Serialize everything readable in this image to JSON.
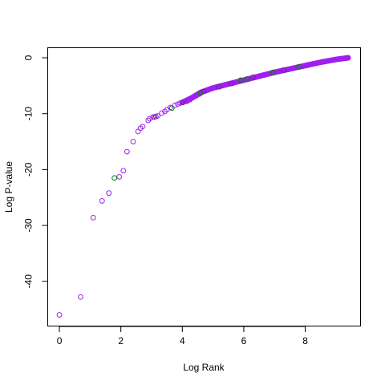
{
  "chart_data": {
    "type": "scatter",
    "title": "",
    "xlabel": "Log Rank",
    "ylabel": "Log P-value",
    "xlim": [
      -0.38,
      9.8
    ],
    "ylim": [
      -48.0,
      1.8
    ],
    "xticks": [
      0,
      2,
      4,
      6,
      8
    ],
    "yticks": [
      0,
      -10,
      -20,
      -30,
      -40
    ],
    "grid": false,
    "legend": "none",
    "marker": "open-circle",
    "colors": {
      "purple": "#a020f0",
      "green": "#008000",
      "dark_purple": "#6a2a8a"
    },
    "curve": {
      "description": "dense trail of overlapping circles from x=4.0 to x=9.4",
      "x": [
        4.0,
        4.3,
        4.6,
        5.0,
        5.5,
        6.0,
        6.5,
        7.0,
        7.5,
        8.0,
        8.5,
        9.0,
        9.4
      ],
      "y": [
        -8.0,
        -7.2,
        -6.2,
        -5.4,
        -4.7,
        -4.0,
        -3.3,
        -2.6,
        -2.0,
        -1.4,
        -0.8,
        -0.3,
        0.0
      ]
    },
    "series": [
      {
        "name": "",
        "color": "#a020f0",
        "points": [
          [
            0.0,
            -46.0
          ],
          [
            0.69,
            -42.8
          ],
          [
            1.1,
            -28.6
          ],
          [
            1.39,
            -25.6
          ],
          [
            1.61,
            -24.2
          ],
          [
            1.95,
            -21.3
          ],
          [
            2.08,
            -20.2
          ],
          [
            2.2,
            -16.8
          ],
          [
            2.4,
            -15.0
          ],
          [
            2.56,
            -13.2
          ],
          [
            2.64,
            -12.6
          ],
          [
            2.71,
            -12.3
          ],
          [
            2.89,
            -11.2
          ],
          [
            2.94,
            -10.9
          ],
          [
            3.04,
            -10.6
          ],
          [
            3.14,
            -10.5
          ],
          [
            3.2,
            -10.4
          ],
          [
            3.33,
            -9.9
          ],
          [
            3.43,
            -9.6
          ],
          [
            3.5,
            -9.3
          ],
          [
            3.61,
            -8.9
          ],
          [
            3.76,
            -8.5
          ],
          [
            3.85,
            -8.3
          ],
          [
            3.93,
            -8.1
          ],
          [
            4.05,
            -7.9
          ],
          [
            4.15,
            -7.8
          ],
          [
            4.25,
            -7.5
          ],
          [
            4.35,
            -7.1
          ],
          [
            4.45,
            -6.8
          ],
          [
            4.55,
            -6.5
          ]
        ]
      },
      {
        "name": "",
        "color": "#008000",
        "points": [
          [
            1.79,
            -21.5
          ],
          [
            3.66,
            -9.0
          ],
          [
            4.6,
            -6.3
          ],
          [
            5.9,
            -4.0
          ],
          [
            6.1,
            -3.8
          ],
          [
            6.95,
            -2.6
          ],
          [
            7.8,
            -1.6
          ]
        ]
      },
      {
        "name": "",
        "color": "#6a2a8a",
        "points": [
          [
            3.1,
            -10.6
          ],
          [
            4.0,
            -8.0
          ],
          [
            4.7,
            -6.0
          ],
          [
            5.2,
            -5.2
          ],
          [
            5.6,
            -4.6
          ],
          [
            6.3,
            -3.5
          ],
          [
            7.3,
            -2.2
          ]
        ]
      }
    ]
  }
}
